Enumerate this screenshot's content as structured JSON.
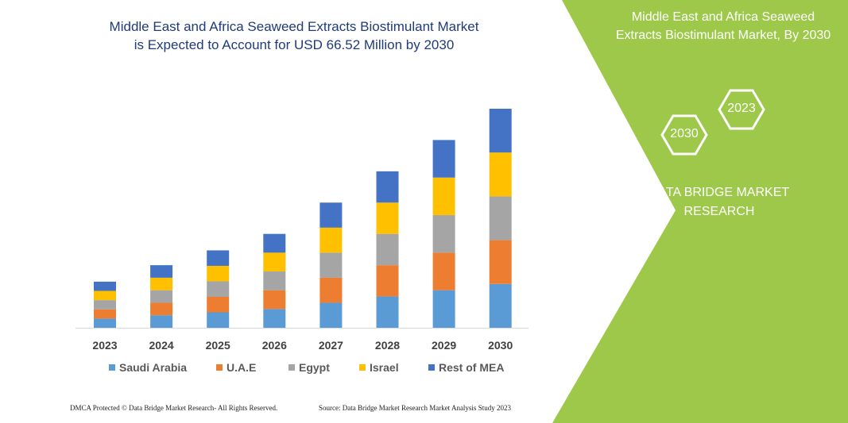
{
  "chart_data": {
    "type": "bar",
    "stacked": true,
    "title": "Middle East and Africa Seaweed Extracts Biostimulant Market is Expected to Account for USD 66.52 Million by 2030",
    "categories": [
      "2023",
      "2024",
      "2025",
      "2026",
      "2027",
      "2028",
      "2029",
      "2030"
    ],
    "series": [
      {
        "name": "Saudi Arabia",
        "color": "#5b9bd5",
        "values": [
          2.8,
          3.8,
          4.7,
          5.7,
          7.6,
          9.5,
          11.4,
          13.3
        ]
      },
      {
        "name": "U.A.E",
        "color": "#ed7d31",
        "values": [
          2.8,
          3.8,
          4.7,
          5.7,
          7.6,
          9.5,
          11.4,
          13.3
        ]
      },
      {
        "name": "Egypt",
        "color": "#a5a5a5",
        "values": [
          2.8,
          3.8,
          4.7,
          5.7,
          7.6,
          9.5,
          11.4,
          13.3
        ]
      },
      {
        "name": "Israel",
        "color": "#ffc000",
        "values": [
          2.8,
          3.8,
          4.7,
          5.7,
          7.6,
          9.5,
          11.4,
          13.3
        ]
      },
      {
        "name": "Rest of MEA",
        "color": "#4472c4",
        "values": [
          2.8,
          3.8,
          4.7,
          5.7,
          7.6,
          9.5,
          11.4,
          13.3
        ]
      }
    ],
    "legend": "bottom",
    "grid": false,
    "y_axis_visible": false
  },
  "title_lines": [
    "Middle East and Africa Seaweed Extracts Biostimulant Market",
    "is Expected to Account for USD 66.52 Million by 2030"
  ],
  "panel": {
    "title_lines": [
      "Middle East and Africa Seaweed",
      "Extracts Biostimulant Market, By 2030"
    ],
    "hex_left": "2030",
    "hex_right": "2023",
    "brand_lines": [
      "DATA BRIDGE MARKET",
      "RESEARCH"
    ],
    "color": "#9dc84a"
  },
  "footer": {
    "left": "DMCA Protected © Data Bridge Market Research-  All Rights Reserved.",
    "right": "Source: Data Bridge Market Research  Market Analysis Study 2023"
  }
}
